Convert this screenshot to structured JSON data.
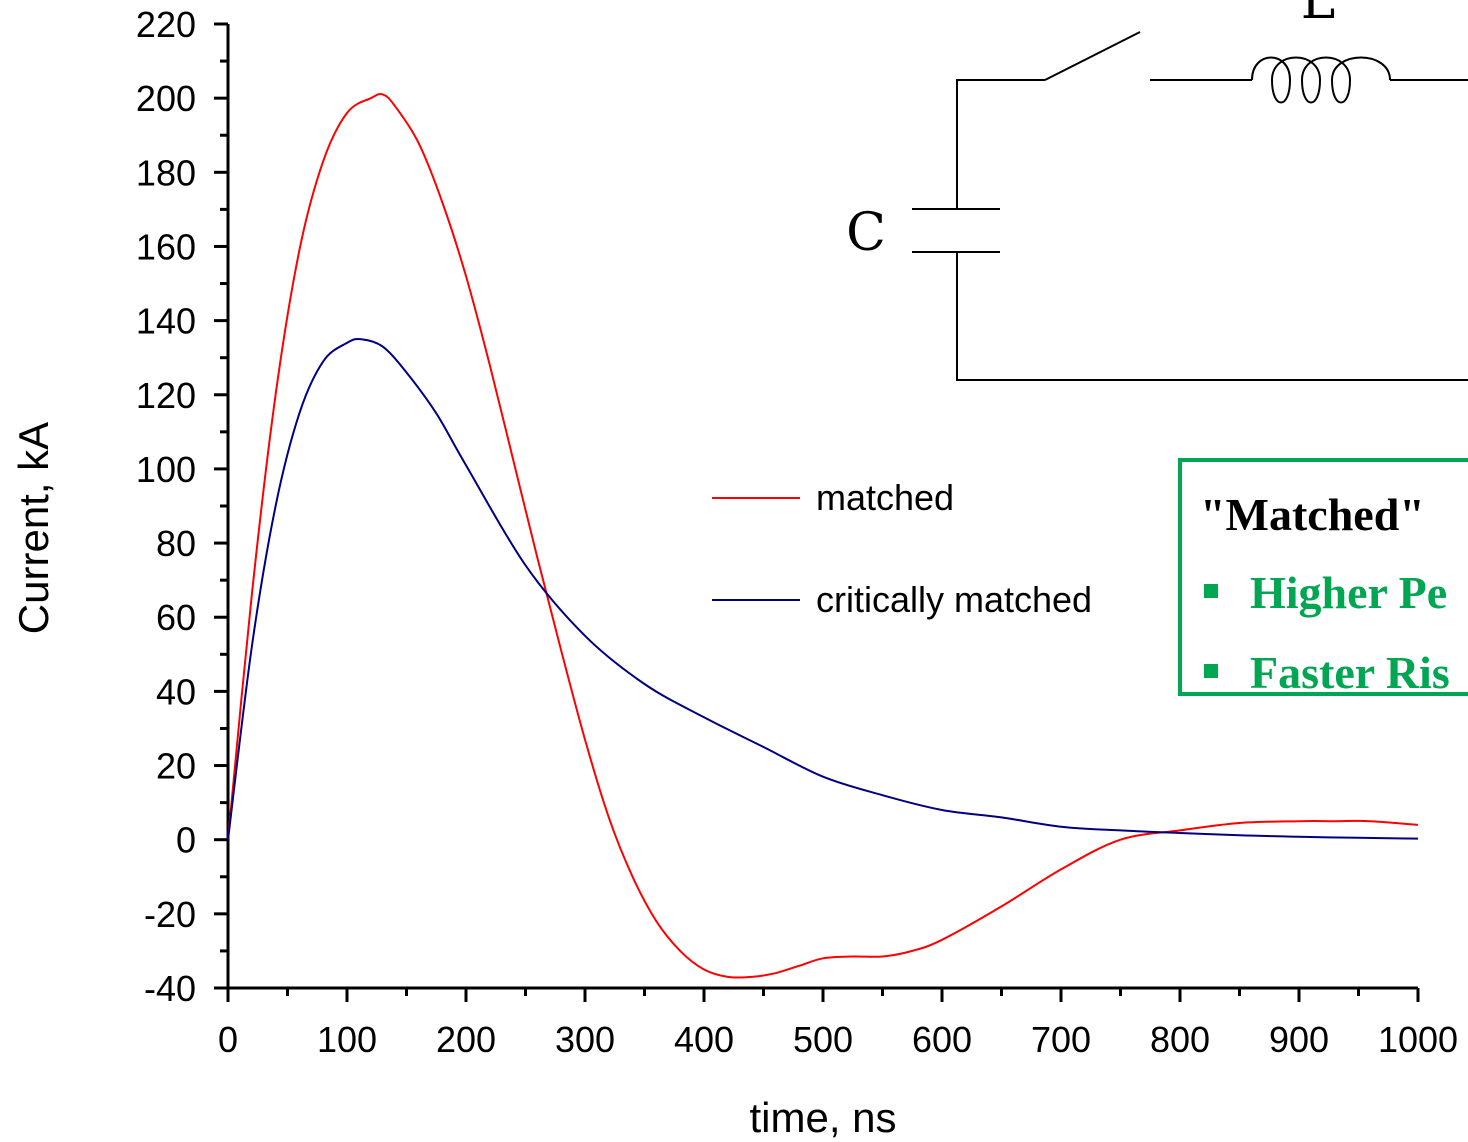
{
  "chart_data": {
    "type": "line",
    "xlabel": "time, ns",
    "ylabel": "Current, kA",
    "xlim": [
      0,
      1000
    ],
    "ylim": [
      -40,
      220
    ],
    "x_ticks": [
      0,
      100,
      200,
      300,
      400,
      500,
      600,
      700,
      800,
      900,
      1000
    ],
    "y_ticks": [
      -40,
      -20,
      0,
      20,
      40,
      60,
      80,
      100,
      120,
      140,
      160,
      180,
      200,
      220
    ],
    "grid": false,
    "legend_position": "center",
    "series": [
      {
        "name": "matched",
        "color": "#ff0000",
        "x": [
          0,
          20,
          40,
          60,
          80,
          100,
          120,
          130,
          140,
          160,
          180,
          200,
          220,
          240,
          260,
          280,
          300,
          320,
          340,
          360,
          380,
          400,
          420,
          440,
          460,
          480,
          500,
          525,
          550,
          575,
          600,
          650,
          700,
          750,
          800,
          850,
          900,
          930,
          960,
          1000
        ],
        "y": [
          0,
          66,
          120,
          159,
          183,
          196,
          200,
          201,
          198,
          188,
          172,
          152,
          128,
          102,
          76,
          51,
          27,
          6,
          -10,
          -22,
          -30,
          -35,
          -37,
          -37,
          -36,
          -34,
          -32,
          -31.5,
          -31.5,
          -30,
          -27,
          -18,
          -8,
          0,
          2.5,
          4.5,
          5,
          5,
          5,
          4
        ]
      },
      {
        "name": "critically matched",
        "color": "#000080",
        "x": [
          0,
          20,
          40,
          60,
          80,
          100,
          112,
          130,
          150,
          175,
          200,
          250,
          300,
          350,
          400,
          450,
          500,
          550,
          600,
          650,
          700,
          750,
          800,
          850,
          900,
          950,
          1000
        ],
        "y": [
          0,
          52,
          90,
          115,
          129,
          134,
          135,
          133,
          126,
          115,
          101,
          74,
          55,
          42,
          33,
          25,
          17,
          12,
          8,
          6,
          3.5,
          2.5,
          1.8,
          1.2,
          0.8,
          0.5,
          0.3
        ]
      }
    ]
  },
  "circuit": {
    "inductor_label": "L",
    "capacitor_label": "C"
  },
  "callout": {
    "title": "\"Matched\"",
    "bullets": [
      "Higher Pe",
      "Faster Ris"
    ],
    "bullet_color": "#00a651",
    "border_color": "#00a651"
  }
}
